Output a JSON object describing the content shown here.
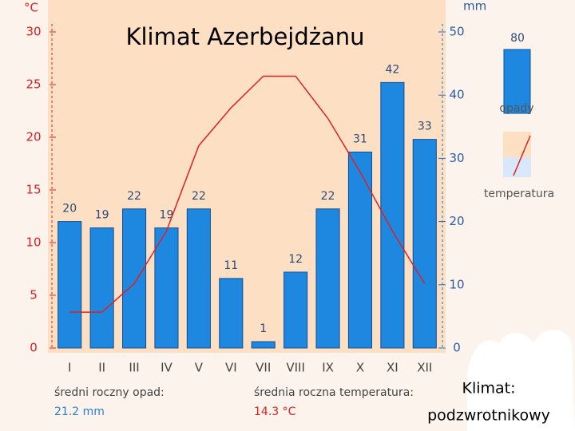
{
  "chart_data": {
    "type": "bar",
    "title": "Klimat Azerbejdżanu",
    "y_label": "°C",
    "y2_label": "mm",
    "categories": [
      "I",
      "II",
      "III",
      "IV",
      "V",
      "VI",
      "VII",
      "VIII",
      "IX",
      "X",
      "XI",
      "XII"
    ],
    "series": [
      {
        "name": "opady",
        "type": "bar",
        "axis": "y2",
        "color": "#1e88e0",
        "values": [
          20,
          19,
          22,
          19,
          22,
          11,
          1,
          12,
          22,
          31,
          42,
          33
        ]
      },
      {
        "name": "temperatura",
        "type": "line",
        "color": "#e02020",
        "values": [
          3.4,
          3.4,
          6.1,
          11.1,
          19.2,
          22.8,
          25.8,
          25.8,
          21.8,
          16.7,
          11.1,
          6.1
        ]
      }
    ],
    "ylim": [
      0,
      30
    ],
    "yticks": [
      0,
      5,
      10,
      15,
      20,
      25,
      30
    ],
    "y2lim": [
      0,
      50
    ],
    "y2ticks": [
      0,
      10,
      20,
      30,
      40,
      50
    ],
    "grid": false,
    "legend_sample_label": "80",
    "annotations": [
      {
        "label": "średni roczny opad:",
        "value": "21.2 mm"
      },
      {
        "label": "średnia roczna temperatura:",
        "value": "14.3 °C"
      }
    ],
    "footer_note": [
      "Klimat:",
      "podzwrotnikowy"
    ]
  }
}
